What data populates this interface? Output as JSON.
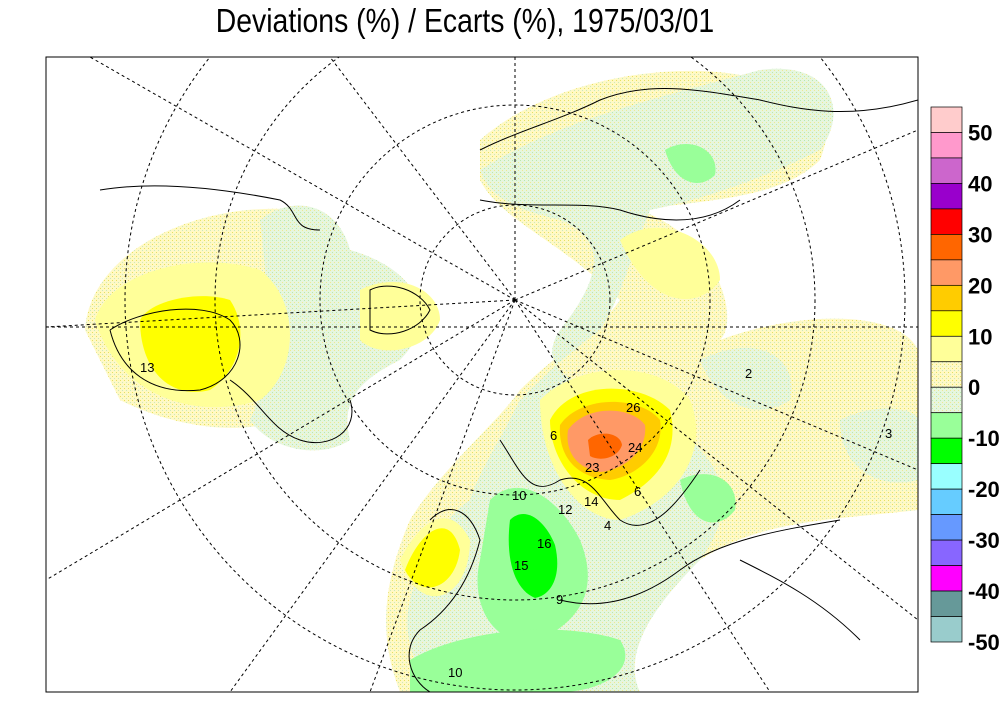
{
  "title": "Deviations (%) / Ecarts (%), 1975/03/01",
  "legend": {
    "colors": [
      "#ffcccc",
      "#ff99cc",
      "#cc66cc",
      "#9900cc",
      "#ff0000",
      "#ff6600",
      "#ff9966",
      "#ffcc00",
      "#ffff00",
      "#ffff99",
      "#fff6b0",
      "#dff3d6",
      "#99ff99",
      "#00ff00",
      "#99ffff",
      "#66ccff",
      "#6699ff",
      "#8866ff",
      "#ff00ff",
      "#669999",
      "#99cccc"
    ],
    "labels": [
      "50",
      "40",
      "30",
      "20",
      "10",
      "0",
      "-10",
      "-20",
      "-30",
      "-40",
      "-50"
    ]
  },
  "stations": [
    "13",
    "2",
    "3",
    "6",
    "26",
    "23",
    "24",
    "16",
    "15",
    "14",
    "12",
    "10",
    "9",
    "6",
    "4",
    "10"
  ]
}
